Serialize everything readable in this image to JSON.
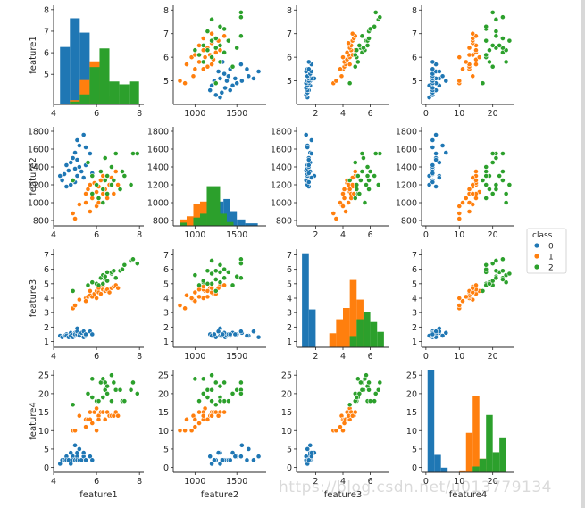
{
  "colors": {
    "class_0": "#1f77b4",
    "class_1": "#ff7f0e",
    "class_2": "#2ca02c"
  },
  "watermark": "https://blog.csdn.net/u013779134",
  "chart_data": {
    "type": "scatter",
    "kind": "pairplot",
    "features": [
      "feature1",
      "feature2",
      "feature3",
      "feature4"
    ],
    "legend": {
      "title": "class",
      "labels": [
        "0",
        "1",
        "2"
      ],
      "placement": "right"
    },
    "grid": false,
    "axes": {
      "feature1": {
        "lim": [
          4.0,
          8.2
        ],
        "ticks": [
          4,
          6,
          8
        ]
      },
      "feature2": {
        "lim": [
          740,
          1850
        ],
        "ticks": [
          800,
          1000,
          1200,
          1400,
          1600,
          1800
        ]
      },
      "feature3": {
        "lim": [
          0.6,
          7.4
        ],
        "ticks": [
          1,
          2,
          3,
          4,
          5,
          6,
          7
        ]
      },
      "feature4": {
        "lim": [
          -1.3,
          26.5
        ],
        "ticks": [
          0,
          5,
          10,
          15,
          20,
          25
        ]
      }
    },
    "diag_axes": {
      "feature2": {
        "ticks": [
          1000,
          1500
        ]
      },
      "feature3": {
        "ticks": [
          2,
          4,
          6
        ]
      },
      "feature4": {
        "ticks": [
          0,
          10,
          20
        ]
      }
    },
    "offdiag_xaxes": {
      "feature2": {
        "lim": [
          740,
          1850
        ],
        "ticks": [
          1000,
          1500
        ]
      },
      "feature3": {
        "lim": [
          0.6,
          7.4
        ],
        "ticks": [
          2,
          4,
          6
        ]
      },
      "feature4": {
        "lim": [
          -1.3,
          26.5
        ],
        "ticks": [
          0,
          10,
          20
        ]
      }
    },
    "histograms": {
      "feature1": {
        "lim": [
          0,
          6.9
        ],
        "bars": [
          {
            "class": 0,
            "bins": [
              [
                4.3,
                4.76,
                4.0
              ],
              [
                4.76,
                5.22,
                6.0
              ],
              [
                5.22,
                5.68,
                5.0
              ],
              [
                5.68,
                6.14,
                1.0
              ]
            ]
          },
          {
            "class": 1,
            "bins": [
              [
                4.76,
                5.22,
                0.3
              ],
              [
                5.22,
                5.68,
                1.7
              ],
              [
                5.68,
                6.14,
                3.0
              ],
              [
                6.14,
                6.6,
                1.4
              ],
              [
                6.6,
                7.06,
                0.6
              ]
            ]
          },
          {
            "class": 2,
            "bins": [
              [
                4.76,
                5.22,
                0.2
              ],
              [
                5.22,
                5.68,
                0.7
              ],
              [
                5.68,
                6.14,
                2.6
              ],
              [
                6.14,
                6.6,
                3.9
              ],
              [
                6.6,
                7.06,
                1.6
              ],
              [
                7.06,
                7.52,
                1.4
              ],
              [
                7.52,
                7.98,
                1.6
              ]
            ]
          }
        ]
      },
      "feature2": {
        "lim": [
          0,
          15.5
        ],
        "bars": [
          {
            "class": 0,
            "bins": [
              [
                1100,
                1180,
                0.8
              ],
              [
                1180,
                1260,
                1.3
              ],
              [
                1260,
                1340,
                3.8
              ],
              [
                1340,
                1420,
                4.2
              ],
              [
                1420,
                1500,
                2.3
              ],
              [
                1500,
                1600,
                1.0
              ],
              [
                1600,
                1750,
                0.4
              ]
            ]
          },
          {
            "class": 1,
            "bins": [
              [
                820,
                900,
                1.0
              ],
              [
                900,
                980,
                1.5
              ],
              [
                980,
                1060,
                3.4
              ],
              [
                1060,
                1140,
                3.8
              ],
              [
                1140,
                1220,
                3.8
              ],
              [
                1220,
                1300,
                1.9
              ],
              [
                1300,
                1380,
                0.8
              ],
              [
                1380,
                1460,
                0.3
              ]
            ]
          },
          {
            "class": 2,
            "bins": [
              [
                820,
                900,
                0.5
              ],
              [
                980,
                1060,
                1.3
              ],
              [
                1060,
                1140,
                1.9
              ],
              [
                1140,
                1220,
                6.2
              ],
              [
                1220,
                1300,
                6.2
              ],
              [
                1300,
                1380,
                1.9
              ],
              [
                1380,
                1460,
                0.6
              ]
            ]
          }
        ]
      },
      "feature3": {
        "lim": [
          0,
          7.0
        ],
        "bars": [
          {
            "class": 0,
            "bins": [
              [
                1.0,
                1.5,
                6.7
              ],
              [
                1.5,
                2.0,
                2.7
              ]
            ]
          },
          {
            "class": 1,
            "bins": [
              [
                3.0,
                3.5,
                1.0
              ],
              [
                3.5,
                4.0,
                2.0
              ],
              [
                4.0,
                4.5,
                2.8
              ],
              [
                4.5,
                5.0,
                4.8
              ],
              [
                5.0,
                5.5,
                3.4
              ]
            ]
          },
          {
            "class": 2,
            "bins": [
              [
                4.5,
                5.0,
                0.8
              ],
              [
                5.0,
                5.5,
                2.0
              ],
              [
                5.5,
                6.0,
                2.5
              ],
              [
                6.0,
                6.5,
                1.8
              ],
              [
                6.5,
                7.0,
                1.1
              ]
            ]
          }
        ]
      },
      "feature4": {
        "lim": [
          0,
          26.5
        ],
        "bars": [
          {
            "class": 0,
            "bins": [
              [
                0.5,
                2.5,
                26.5
              ],
              [
                2.5,
                4.5,
                4.5
              ],
              [
                4.5,
                6.5,
                1.2
              ]
            ]
          },
          {
            "class": 1,
            "bins": [
              [
                10,
                12,
                0.5
              ],
              [
                12,
                14,
                10.2
              ],
              [
                14,
                16,
                19.8
              ],
              [
                16,
                18,
                3.5
              ],
              [
                18,
                20,
                0.8
              ]
            ]
          },
          {
            "class": 2,
            "bins": [
              [
                14,
                16,
                1.5
              ],
              [
                16,
                18,
                3.5
              ],
              [
                18,
                20,
                14.8
              ],
              [
                20,
                22,
                5.2
              ],
              [
                22,
                24,
                8.8
              ]
            ]
          }
        ]
      }
    },
    "scatter_points": {
      "class_0": {
        "feature1": [
          4.3,
          4.4,
          4.5,
          4.6,
          4.6,
          4.7,
          4.8,
          4.8,
          4.9,
          4.9,
          5.0,
          5.0,
          5.0,
          5.1,
          5.1,
          5.1,
          5.2,
          5.2,
          5.3,
          5.4,
          5.4,
          5.5,
          5.5,
          5.7,
          5.8
        ],
        "feature2": [
          1300,
          1250,
          1320,
          1180,
          1420,
          1360,
          1450,
          1200,
          1500,
          1250,
          1380,
          1560,
          1230,
          1300,
          1480,
          1700,
          1400,
          1640,
          1350,
          1760,
          1280,
          1620,
          1420,
          1550,
          1330
        ],
        "feature3": [
          1.4,
          1.3,
          1.4,
          1.5,
          1.4,
          1.3,
          1.6,
          1.4,
          1.5,
          1.3,
          1.4,
          1.6,
          1.5,
          1.9,
          1.5,
          1.7,
          1.5,
          1.4,
          1.6,
          1.3,
          1.7,
          1.4,
          1.5,
          1.7,
          1.5
        ],
        "feature4": [
          1.0,
          2.0,
          2.0,
          3.0,
          2.0,
          2.0,
          4.0,
          1.0,
          3.0,
          2.0,
          2.0,
          6.0,
          2.0,
          4.0,
          3.0,
          2.0,
          2.0,
          5.0,
          2.0,
          3.0,
          4.0,
          2.0,
          2.0,
          3.0,
          2.0
        ]
      },
      "class_1": {
        "feature1": [
          4.9,
          5.0,
          5.2,
          5.5,
          5.5,
          5.6,
          5.7,
          5.7,
          5.8,
          5.9,
          6.0,
          6.0,
          6.1,
          6.1,
          6.2,
          6.3,
          6.3,
          6.4,
          6.5,
          6.6,
          6.7,
          6.8,
          6.9,
          7.0
        ],
        "feature2": [
          880,
          820,
          980,
          1100,
          1000,
          1150,
          900,
          1200,
          1050,
          1220,
          1120,
          960,
          1180,
          1000,
          1250,
          1100,
          1300,
          1150,
          1050,
          1200,
          1280,
          1100,
          1350,
          1200
        ],
        "feature3": [
          3.3,
          3.5,
          3.9,
          4.0,
          3.8,
          4.1,
          4.2,
          4.5,
          4.1,
          4.3,
          4.5,
          4.0,
          4.7,
          4.4,
          4.3,
          4.6,
          4.9,
          4.5,
          4.6,
          4.4,
          4.7,
          4.8,
          4.9,
          4.7
        ],
        "feature4": [
          10.0,
          10.0,
          14.0,
          13.0,
          11.0,
          13.0,
          13.0,
          15.0,
          12.0,
          15.0,
          16.0,
          10.0,
          14.0,
          13.0,
          15.0,
          15.0,
          15.0,
          13.0,
          15.0,
          14.0,
          14.0,
          14.0,
          15.0,
          14.0
        ]
      },
      "class_2": {
        "feature1": [
          4.9,
          5.6,
          5.8,
          5.8,
          6.0,
          6.1,
          6.2,
          6.3,
          6.3,
          6.4,
          6.4,
          6.5,
          6.5,
          6.7,
          6.7,
          6.8,
          6.9,
          7.1,
          7.2,
          7.3,
          7.6,
          7.7,
          7.9
        ],
        "feature2": [
          1250,
          1450,
          1300,
          1100,
          1200,
          1050,
          1350,
          1000,
          1150,
          1250,
          1500,
          1100,
          1300,
          1200,
          1400,
          1250,
          1550,
          1150,
          1350,
          1300,
          1200,
          1550,
          1550
        ],
        "feature3": [
          4.5,
          4.9,
          5.1,
          5.1,
          5.0,
          4.9,
          5.4,
          5.6,
          5.0,
          5.3,
          5.5,
          5.2,
          5.8,
          5.7,
          5.8,
          5.9,
          5.4,
          5.9,
          6.0,
          6.3,
          6.6,
          6.7,
          6.4
        ],
        "feature4": [
          17.0,
          20.0,
          19.0,
          24.0,
          18.0,
          18.0,
          23.0,
          24.0,
          19.0,
          23.0,
          21.0,
          20.0,
          22.0,
          25.0,
          18.0,
          23.0,
          21.0,
          21.0,
          18.0,
          18.0,
          21.0,
          23.0,
          20.0
        ]
      }
    }
  }
}
